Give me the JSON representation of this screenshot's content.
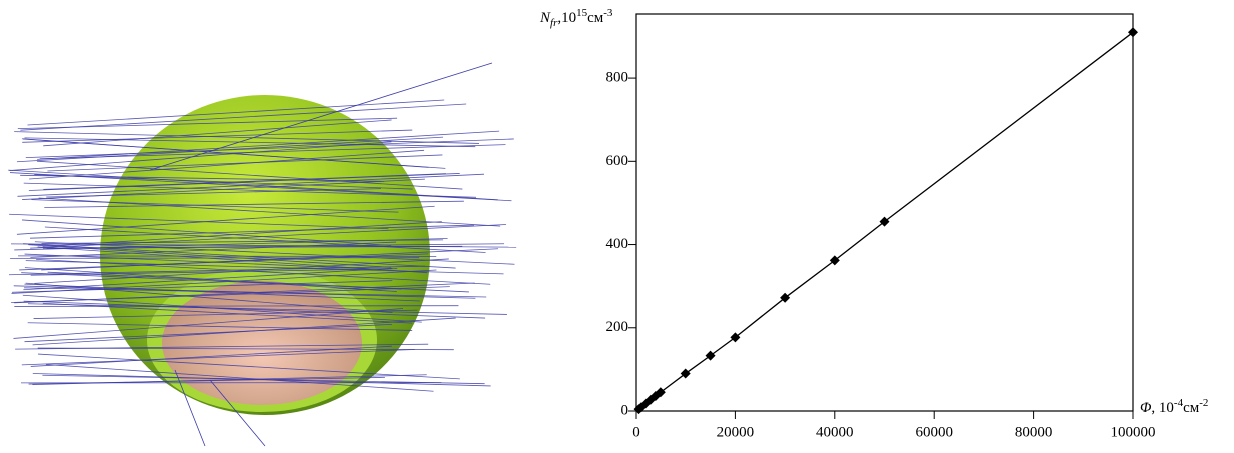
{
  "chart_data": {
    "type": "line",
    "x": [
      500,
      1000,
      2000,
      3000,
      4000,
      5000,
      10000,
      15000,
      20000,
      30000,
      40000,
      50000,
      100000
    ],
    "series": [
      {
        "color": "#000000",
        "marker": "diamond",
        "values": [
          4.5,
          9,
          18,
          27,
          36,
          45,
          90,
          133,
          177,
          272,
          362,
          455,
          910
        ]
      }
    ],
    "xlim": [
      0,
      100000
    ],
    "ylim": [
      0,
      954
    ],
    "xticks": [
      0,
      20000,
      40000,
      60000,
      80000,
      100000
    ],
    "yticks": [
      0,
      200,
      400,
      600,
      800
    ],
    "y_label": [
      "N",
      "fr",
      ",10",
      "15",
      "см",
      "-3"
    ],
    "x_label": [
      "Φ",
      ", 10",
      "-4",
      "см",
      "-2"
    ]
  }
}
